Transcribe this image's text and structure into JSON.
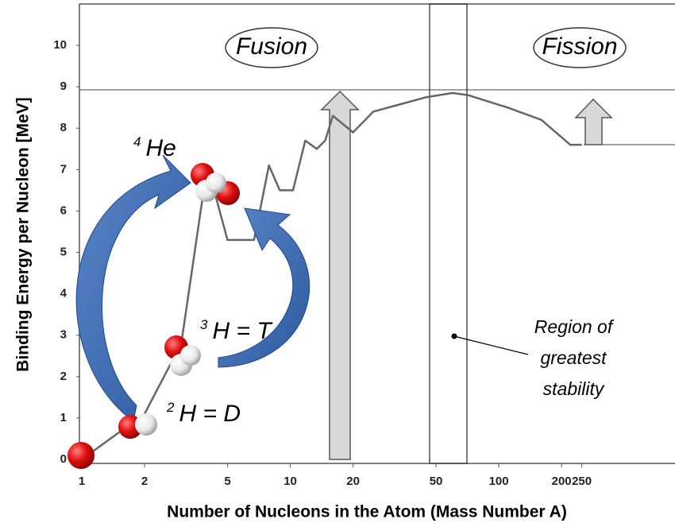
{
  "chart_data": {
    "type": "line",
    "x_label": "Number of Nucleons in the Atom (Mass Number A)",
    "y_label": "Binding Energy per Nucleon  [MeV]",
    "x_scale": "log",
    "xlim": [
      1,
      700
    ],
    "xticks": [
      1,
      2,
      5,
      10,
      20,
      50,
      100,
      200,
      250
    ],
    "ylim": [
      0,
      11
    ],
    "yticks": [
      0,
      1,
      2,
      3,
      4,
      5,
      6,
      7,
      8,
      9,
      10
    ],
    "series": [
      {
        "color": "#666666",
        "x": [
          1,
          2,
          3,
          4,
          5,
          6.7,
          7.9,
          8.9,
          10.3,
          11.8,
          13.4,
          14.7,
          16,
          20,
          25,
          35,
          45,
          60,
          71,
          110,
          160,
          220,
          250
        ],
        "values": [
          0,
          1.1,
          2.8,
          7.1,
          5.3,
          5.3,
          7.1,
          6.5,
          6.5,
          7.7,
          7.5,
          7.7,
          8.3,
          7.9,
          8.4,
          8.6,
          8.75,
          8.85,
          8.8,
          8.5,
          8.2,
          7.6,
          7.6
        ]
      }
    ],
    "annotations": {
      "fusion": "Fusion",
      "fission": "Fission",
      "region": [
        "Region of",
        "greatest",
        "stability"
      ],
      "he": {
        "sup": "4",
        "text": "He"
      },
      "tritium": {
        "sup": "3",
        "text": "H = T"
      },
      "deuterium": {
        "sup": "2",
        "text": "H = D"
      }
    }
  }
}
